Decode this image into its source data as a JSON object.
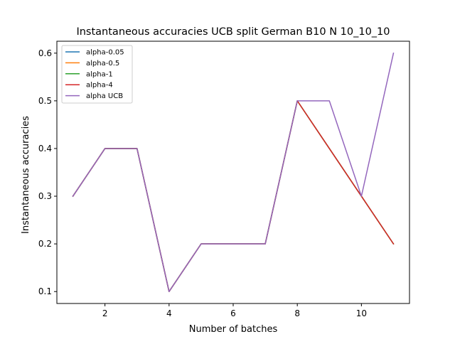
{
  "chart_data": {
    "type": "line",
    "title": "Instantaneous accuracies UCB split German B10 N 10_10_10",
    "xlabel": "Number of batches",
    "ylabel": "Instantaneous accuracies",
    "xlim": [
      0.5,
      11.5
    ],
    "ylim": [
      0.075,
      0.625
    ],
    "xticks": [
      2,
      4,
      6,
      8,
      10
    ],
    "yticks": [
      0.1,
      0.2,
      0.3,
      0.4,
      0.5,
      0.6
    ],
    "xtick_labels": [
      "2",
      "4",
      "6",
      "8",
      "10"
    ],
    "ytick_labels": [
      "0.1",
      "0.2",
      "0.3",
      "0.4",
      "0.5",
      "0.6"
    ],
    "grid": false,
    "legend_position": "top-left",
    "x": [
      1,
      2,
      3,
      4,
      5,
      6,
      7,
      8,
      9,
      10,
      11
    ],
    "series": [
      {
        "name": "alpha-0.05",
        "color": "#1f77b4",
        "values": [
          0.3,
          0.4,
          0.4,
          0.1,
          0.2,
          0.2,
          0.2,
          0.5,
          0.4,
          0.3,
          0.2
        ]
      },
      {
        "name": "alpha-0.5",
        "color": "#ff7f0e",
        "values": [
          0.3,
          0.4,
          0.4,
          0.1,
          0.2,
          0.2,
          0.2,
          0.5,
          0.4,
          0.3,
          0.2
        ]
      },
      {
        "name": "alpha-1",
        "color": "#2ca02c",
        "values": [
          0.3,
          0.4,
          0.4,
          0.1,
          0.2,
          0.2,
          0.2,
          0.5,
          0.4,
          0.3,
          0.2
        ]
      },
      {
        "name": "alpha-4",
        "color": "#d62728",
        "values": [
          0.3,
          0.4,
          0.4,
          0.1,
          0.2,
          0.2,
          0.2,
          0.5,
          0.4,
          0.3,
          0.2
        ]
      },
      {
        "name": "alpha UCB",
        "color": "#9467bd",
        "values": [
          0.3,
          0.4,
          0.4,
          0.1,
          0.2,
          0.2,
          0.2,
          0.5,
          0.5,
          0.3,
          0.6
        ]
      }
    ]
  }
}
